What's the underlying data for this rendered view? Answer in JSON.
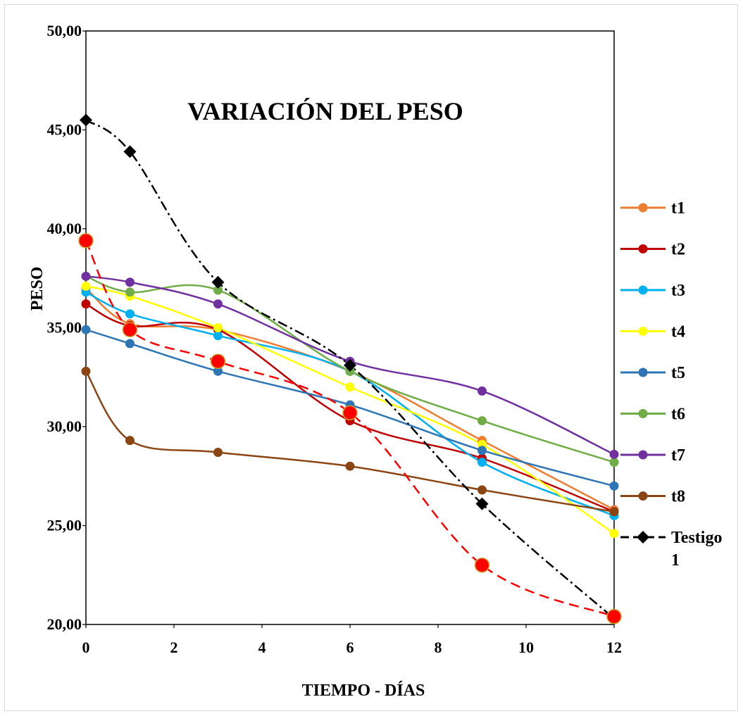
{
  "chart_data": {
    "type": "line",
    "title": "VARIACIÓN DEL PESO",
    "xlabel": "TIEMPO - DÍAS",
    "ylabel": "PESO",
    "xlim": [
      0,
      12
    ],
    "ylim": [
      20,
      50
    ],
    "x_ticks": [
      "0",
      "2",
      "4",
      "6",
      "8",
      "10",
      "12"
    ],
    "y_ticks": [
      "20,00",
      "25,00",
      "30,00",
      "35,00",
      "40,00",
      "45,00",
      "50,00"
    ],
    "x": [
      0,
      1,
      3,
      6,
      9,
      12
    ],
    "grid": false,
    "legend_position": "right",
    "series": [
      {
        "name": "t1",
        "color": "#ED7D31",
        "values": [
          37.0,
          35.2,
          34.9,
          32.8,
          29.3,
          25.8
        ]
      },
      {
        "name": "t2",
        "color": "#C00000",
        "values": [
          36.2,
          35.1,
          34.9,
          30.3,
          28.4,
          25.7
        ]
      },
      {
        "name": "t3",
        "color": "#00B0F0",
        "values": [
          36.8,
          35.7,
          34.6,
          32.8,
          28.2,
          25.5
        ]
      },
      {
        "name": "t4",
        "color": "#FFFF00",
        "values": [
          37.1,
          36.6,
          35.0,
          32.0,
          29.1,
          24.6
        ]
      },
      {
        "name": "t5",
        "color": "#2E75B6",
        "values": [
          34.9,
          34.2,
          32.8,
          31.1,
          28.8,
          27.0
        ]
      },
      {
        "name": "t6",
        "color": "#70AD47",
        "values": [
          37.6,
          36.8,
          36.9,
          32.8,
          30.3,
          28.2
        ]
      },
      {
        "name": "t7",
        "color": "#7030A0",
        "values": [
          37.6,
          37.3,
          36.2,
          33.3,
          31.8,
          28.6
        ]
      },
      {
        "name": "t8",
        "color": "#8B4513",
        "values": [
          32.8,
          29.3,
          28.7,
          28.0,
          26.8,
          25.7
        ]
      },
      {
        "name": "Testigo 1",
        "color": "#000000",
        "values": [
          45.5,
          43.9,
          37.3,
          33.1,
          26.1,
          20.3
        ]
      },
      {
        "name": "",
        "color": "#FF0000",
        "values": [
          39.4,
          34.9,
          33.3,
          30.7,
          23.0,
          20.4
        ]
      }
    ]
  }
}
